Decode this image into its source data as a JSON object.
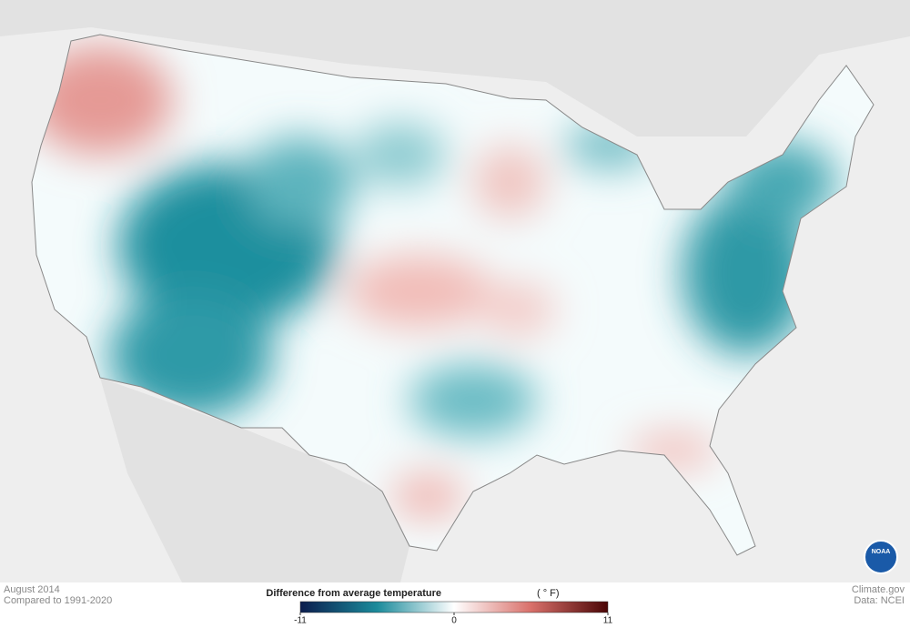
{
  "caption": {
    "period": "August 2014",
    "baseline": "Compared to 1991-2020"
  },
  "legend": {
    "title": "Difference from average temperature",
    "unit": "( ° F)",
    "ticks": [
      -11,
      0,
      11
    ]
  },
  "credits": {
    "source": "Climate.gov",
    "data": "Data: NCEI"
  },
  "logo": "NOAA"
}
